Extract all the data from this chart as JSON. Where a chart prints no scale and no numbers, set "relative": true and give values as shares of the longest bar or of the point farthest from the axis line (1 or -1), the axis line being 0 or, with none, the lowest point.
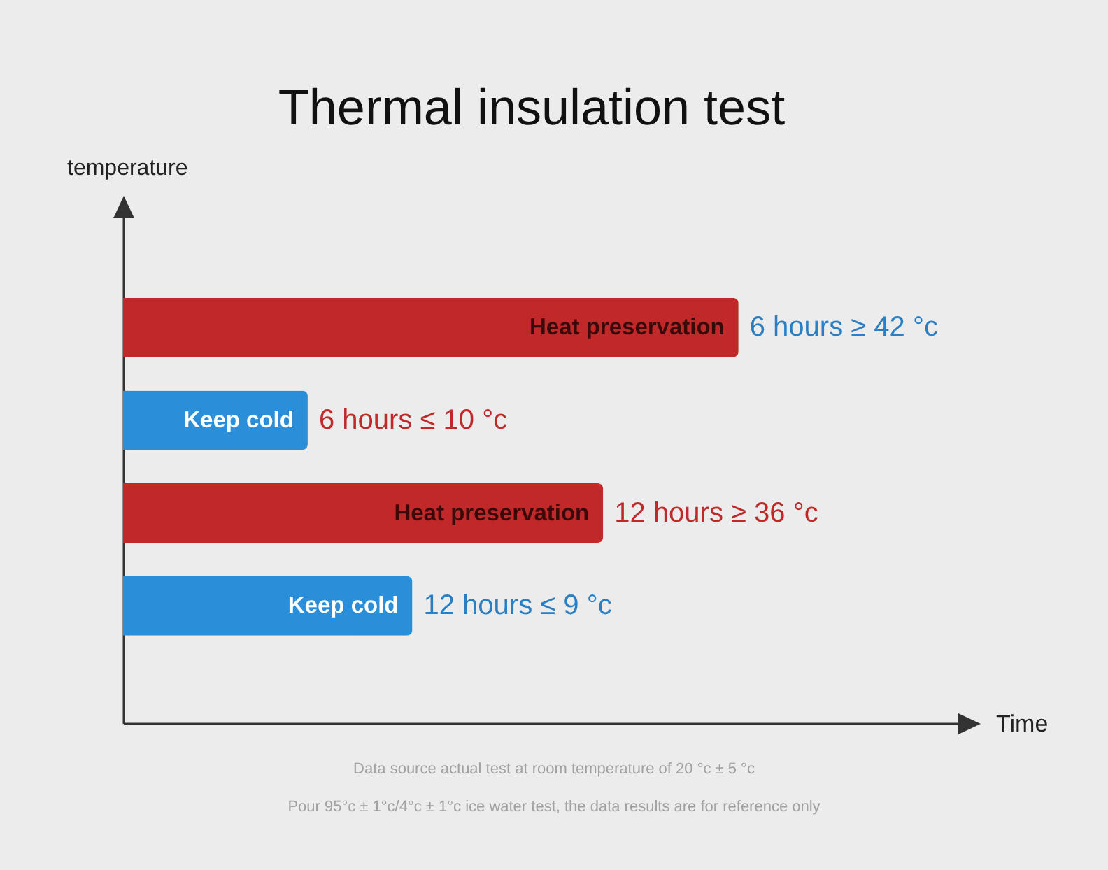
{
  "chart_data": {
    "type": "bar",
    "orientation": "horizontal",
    "relative": true,
    "title": "Thermal insulation test",
    "categories": [
      "Heat preservation",
      "Keep cold",
      "Heat preservation",
      "Keep cold"
    ],
    "values": [
      1,
      0.3,
      0.78,
      0.47
    ],
    "colors": [
      "#c0282a",
      "#2a8fd8",
      "#c0282a",
      "#2a8fd8"
    ],
    "tick_labels": false,
    "annotations": [
      "temperature",
      "Time",
      "6 hours ≥ 42 °c",
      "6 hours ≤ 10 °c",
      "12 hours ≥ 36 °c",
      "12 hours ≤ 9 °c",
      "Data source actual test at room temperature of 20 °c ± 5 °c",
      "Pour 95°c ± 1°c/4°c ± 1°c ice water test, the data results are for reference only"
    ]
  }
}
